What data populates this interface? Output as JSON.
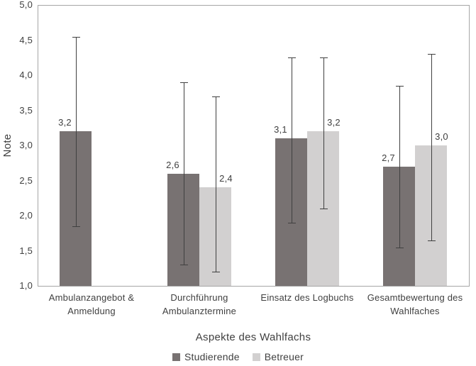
{
  "figure": {
    "background": "#ffffff",
    "border_color": "#a6a6a6",
    "text_color": "#404040",
    "error_bar_color": "#404040"
  },
  "chart_data": {
    "type": "bar",
    "title": "",
    "xlabel": "Aspekte des Wahlfachs",
    "ylabel": "Note",
    "ylim": [
      1.0,
      5.0
    ],
    "ytick_step": 0.5,
    "ytick_labels": [
      "5,0",
      "4,5",
      "4,0",
      "3,5",
      "3,0",
      "2,5",
      "2,0",
      "1,5",
      "1,0"
    ],
    "decimal_separator": ",",
    "grid": false,
    "legend_position": "bottom",
    "error_bars": true,
    "categories": [
      "Ambulanzangebot & Anmeldung",
      "Durchführung Ambulanztermine",
      "Einsatz des Logbuchs",
      "Gesamtbewertung des Wahlfaches"
    ],
    "series": [
      {
        "name": "Studierende",
        "color": "#787272",
        "values": [
          3.2,
          2.6,
          3.1,
          2.7
        ],
        "value_labels": [
          "3,2",
          "2,6",
          "3,1",
          "2,7"
        ],
        "error_low": [
          1.85,
          1.3,
          1.9,
          1.55
        ],
        "error_high": [
          4.55,
          3.9,
          4.25,
          3.85
        ]
      },
      {
        "name": "Betreuer",
        "color": "#d2d0d0",
        "values": [
          null,
          2.4,
          3.2,
          3.0
        ],
        "value_labels": [
          null,
          "2,4",
          "3,2",
          "3,0"
        ],
        "error_low": [
          null,
          1.2,
          2.1,
          1.65
        ],
        "error_high": [
          null,
          3.7,
          4.25,
          4.3
        ]
      }
    ]
  }
}
